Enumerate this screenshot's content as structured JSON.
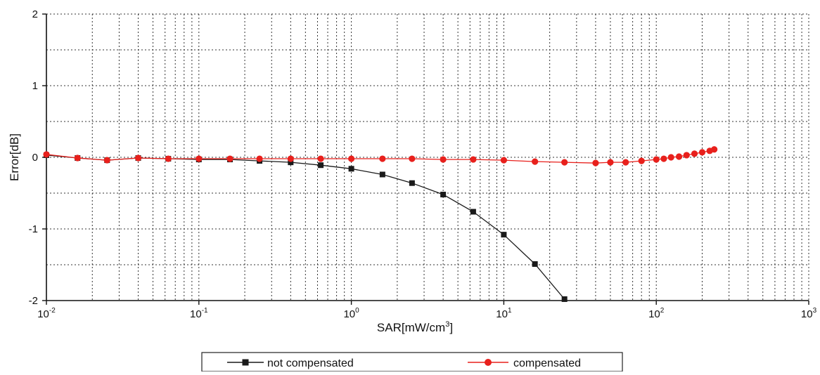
{
  "chart_data": {
    "type": "line",
    "title": "",
    "xlabel": "SAR[mW/cm³]",
    "ylabel": "Error[dB]",
    "xscale": "log",
    "xlim": [
      0.01,
      1000
    ],
    "ylim": [
      -2,
      2
    ],
    "grid": true,
    "legend_position": "bottom",
    "x_ticks": [
      {
        "value": 0.01,
        "base": "10",
        "exp": "-2"
      },
      {
        "value": 0.1,
        "base": "10",
        "exp": "-1"
      },
      {
        "value": 1,
        "base": "10",
        "exp": "0"
      },
      {
        "value": 10,
        "base": "10",
        "exp": "1"
      },
      {
        "value": 100,
        "base": "10",
        "exp": "2"
      },
      {
        "value": 1000,
        "base": "10",
        "exp": "3"
      }
    ],
    "y_ticks": [
      {
        "value": 2,
        "label": "2"
      },
      {
        "value": 1,
        "label": "1"
      },
      {
        "value": 0,
        "label": "0"
      },
      {
        "value": -1,
        "label": "-1"
      },
      {
        "value": -2,
        "label": "-2"
      }
    ],
    "series": [
      {
        "name": "not compensated",
        "color": "#1a1a1a",
        "marker": "square",
        "points": [
          {
            "x": 0.01,
            "y": 0.03
          },
          {
            "x": 0.016,
            "y": -0.01
          },
          {
            "x": 0.025,
            "y": -0.04
          },
          {
            "x": 0.04,
            "y": -0.01
          },
          {
            "x": 0.063,
            "y": -0.02
          },
          {
            "x": 0.1,
            "y": -0.03
          },
          {
            "x": 0.16,
            "y": -0.03
          },
          {
            "x": 0.25,
            "y": -0.05
          },
          {
            "x": 0.4,
            "y": -0.07
          },
          {
            "x": 0.63,
            "y": -0.11
          },
          {
            "x": 1.0,
            "y": -0.16
          },
          {
            "x": 1.6,
            "y": -0.24
          },
          {
            "x": 2.5,
            "y": -0.36
          },
          {
            "x": 4.0,
            "y": -0.52
          },
          {
            "x": 6.3,
            "y": -0.76
          },
          {
            "x": 10,
            "y": -1.08
          },
          {
            "x": 16,
            "y": -1.49
          },
          {
            "x": 25,
            "y": -1.98
          }
        ]
      },
      {
        "name": "compensated",
        "color": "#e8201c",
        "marker": "circle",
        "points": [
          {
            "x": 0.01,
            "y": 0.04
          },
          {
            "x": 0.016,
            "y": -0.01
          },
          {
            "x": 0.025,
            "y": -0.04
          },
          {
            "x": 0.04,
            "y": -0.01
          },
          {
            "x": 0.063,
            "y": -0.02
          },
          {
            "x": 0.1,
            "y": -0.02
          },
          {
            "x": 0.16,
            "y": -0.02
          },
          {
            "x": 0.25,
            "y": -0.02
          },
          {
            "x": 0.4,
            "y": -0.02
          },
          {
            "x": 0.63,
            "y": -0.02
          },
          {
            "x": 1.0,
            "y": -0.02
          },
          {
            "x": 1.6,
            "y": -0.02
          },
          {
            "x": 2.5,
            "y": -0.02
          },
          {
            "x": 4.0,
            "y": -0.03
          },
          {
            "x": 6.3,
            "y": -0.03
          },
          {
            "x": 10,
            "y": -0.04
          },
          {
            "x": 16,
            "y": -0.06
          },
          {
            "x": 25,
            "y": -0.07
          },
          {
            "x": 40,
            "y": -0.08
          },
          {
            "x": 50,
            "y": -0.07
          },
          {
            "x": 63,
            "y": -0.07
          },
          {
            "x": 80,
            "y": -0.05
          },
          {
            "x": 100,
            "y": -0.03
          },
          {
            "x": 112,
            "y": -0.02
          },
          {
            "x": 125,
            "y": 0.0
          },
          {
            "x": 141,
            "y": 0.01
          },
          {
            "x": 158,
            "y": 0.03
          },
          {
            "x": 178,
            "y": 0.05
          },
          {
            "x": 200,
            "y": 0.07
          },
          {
            "x": 224,
            "y": 0.09
          },
          {
            "x": 240,
            "y": 0.11
          }
        ]
      }
    ]
  }
}
